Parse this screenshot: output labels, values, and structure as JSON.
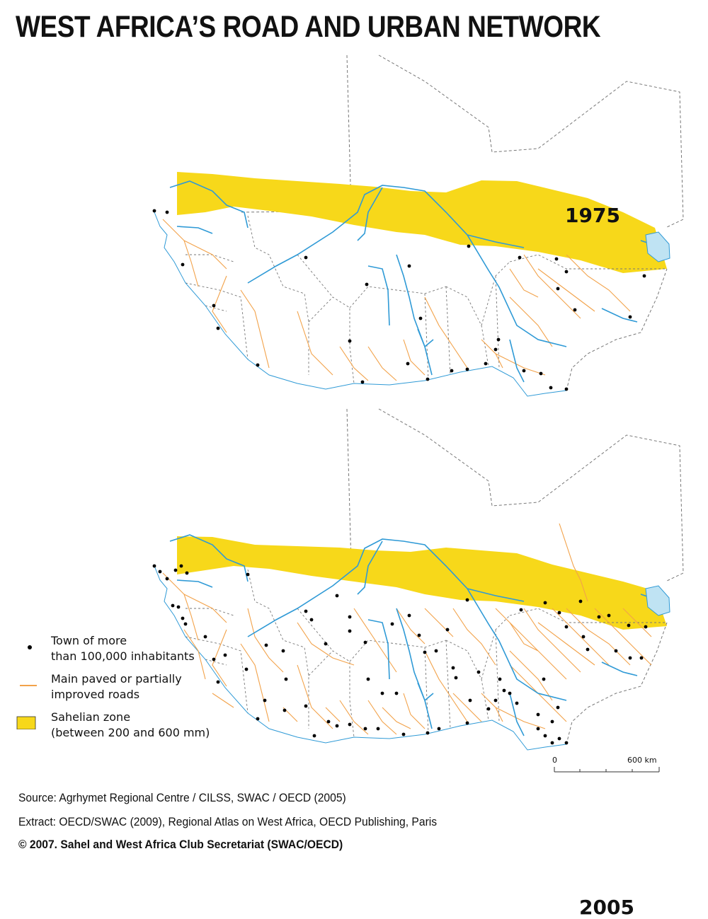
{
  "title": "WEST AFRICA’S ROAD AND URBAN NETWORK",
  "maps": [
    {
      "year": "1975"
    },
    {
      "year": "2005"
    }
  ],
  "legend": {
    "towns": {
      "line1": "Town of more",
      "line2": "than 100,000 inhabitants"
    },
    "roads": {
      "line1": "Main paved or partially",
      "line2": "improved roads"
    },
    "sahel": {
      "line1": "Sahelian zone",
      "line2": "(between 200 and 600 mm)"
    }
  },
  "scale": {
    "start": "0",
    "end": "600 km"
  },
  "source": {
    "line1": "Source: Agrhymet Regional Centre / CILSS, SWAC / OECD (2005)",
    "line2": "Extract: OECD/SWAC (2009), Regional Atlas on West Africa, OECD Publishing, Paris",
    "line3": "© 2007. Sahel and West Africa Club Secretariat (SWAC/OECD)"
  },
  "colors": {
    "sahel": "#f7d81a",
    "road": "#f2a24a",
    "river": "#2f9ad6",
    "lake": "#bfe3f3",
    "border": "#777777",
    "town": "#000000"
  }
}
